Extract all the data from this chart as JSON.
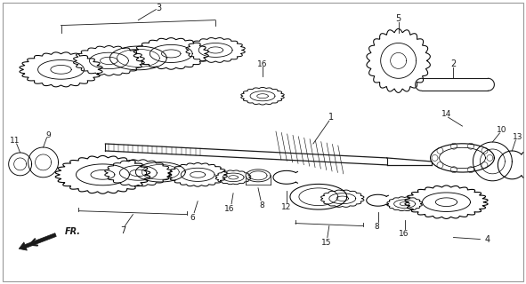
{
  "bg_color": "#ffffff",
  "line_color": "#1a1a1a",
  "fig_width": 5.91,
  "fig_height": 3.2,
  "dpi": 100,
  "border_color": "#cccccc",
  "gear_lw": 0.7,
  "shaft_lw": 1.0,
  "label_fs": 6.5,
  "thin_lw": 0.5
}
